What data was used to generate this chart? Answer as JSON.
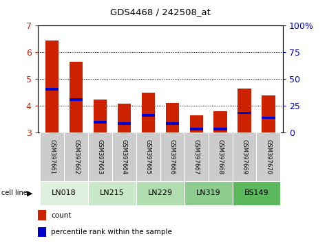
{
  "title": "GDS4468 / 242508_at",
  "samples": [
    "GSM397661",
    "GSM397662",
    "GSM397663",
    "GSM397664",
    "GSM397665",
    "GSM397666",
    "GSM397667",
    "GSM397668",
    "GSM397669",
    "GSM397670"
  ],
  "count_values": [
    6.45,
    5.65,
    4.22,
    4.08,
    4.48,
    4.1,
    3.63,
    3.79,
    4.65,
    4.39
  ],
  "percentile_values": [
    4.62,
    4.22,
    3.38,
    3.33,
    3.63,
    3.33,
    3.13,
    3.13,
    3.73,
    3.55
  ],
  "ylim_left": [
    3,
    7
  ],
  "ylim_right": [
    0,
    100
  ],
  "yticks_left": [
    3,
    4,
    5,
    6,
    7
  ],
  "yticks_right": [
    0,
    25,
    50,
    75,
    100
  ],
  "cell_lines": [
    "LN018",
    "LN215",
    "LN229",
    "LN319",
    "BS149"
  ],
  "cell_line_spans": [
    [
      0,
      1
    ],
    [
      2,
      3
    ],
    [
      4,
      5
    ],
    [
      6,
      7
    ],
    [
      8,
      9
    ]
  ],
  "cell_bg_colors": [
    "#dff0df",
    "#c8e8c8",
    "#b0ddb0",
    "#8fcc8f",
    "#5cb85c"
  ],
  "bar_color": "#cc2200",
  "percentile_color": "#0000cc",
  "bar_width": 0.55,
  "left_tick_color": "#cc2200",
  "right_tick_color": "#0000cc",
  "sample_bg_color": "#cccccc",
  "ybase": 3,
  "blue_bar_height": 0.1
}
